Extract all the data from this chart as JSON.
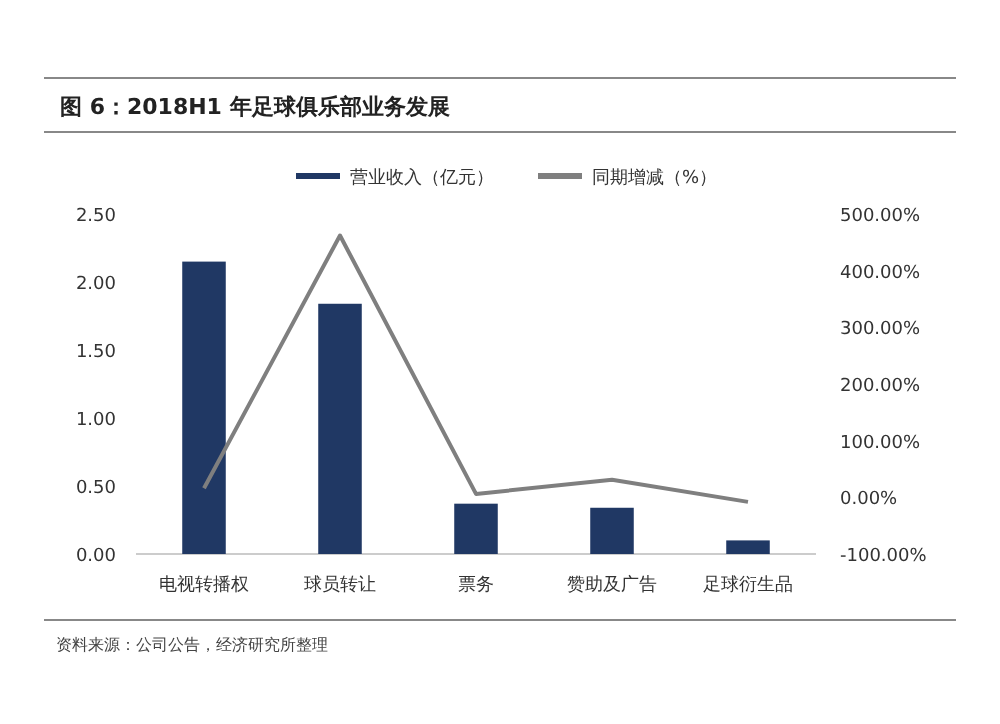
{
  "chart_data": {
    "type": "bar",
    "title": "图 6：2018H1 年足球俱乐部业务发展",
    "categories": [
      "电视转播权",
      "球员转让",
      "票务",
      "赞助及广告",
      "足球衍生品"
    ],
    "series": [
      {
        "name": "营业收入（亿元）",
        "color": "#203864",
        "values": [
          2.15,
          1.84,
          0.37,
          0.34,
          0.1
        ]
      },
      {
        "name": "同期增减（%）",
        "color": "#7f7f7f",
        "type": "line",
        "axis": "y2",
        "values": [
          16,
          462,
          6,
          31,
          -8
        ]
      }
    ],
    "ylim": [
      0,
      2.5
    ],
    "yticks": [
      {
        "value": 0,
        "label": "0.00"
      },
      {
        "value": 0.5,
        "label": "0.50"
      },
      {
        "value": 1,
        "label": "1.00"
      },
      {
        "value": 1.5,
        "label": "1.50"
      },
      {
        "value": 2,
        "label": "2.00"
      },
      {
        "value": 2.5,
        "label": "2.50"
      }
    ],
    "y2lim": [
      -100,
      500
    ],
    "y2ticks": [
      {
        "value": -100,
        "label": "-100.00%"
      },
      {
        "value": 0,
        "label": "0.00%"
      },
      {
        "value": 100,
        "label": "100.00%"
      },
      {
        "value": 200,
        "label": "200.00%"
      },
      {
        "value": 300,
        "label": "300.00%"
      },
      {
        "value": 400,
        "label": "400.00%"
      },
      {
        "value": 500,
        "label": "500.00%"
      }
    ],
    "legend": "top",
    "grid": false,
    "annotations": [
      "资料来源：公司公告，经济研究所整理"
    ]
  }
}
